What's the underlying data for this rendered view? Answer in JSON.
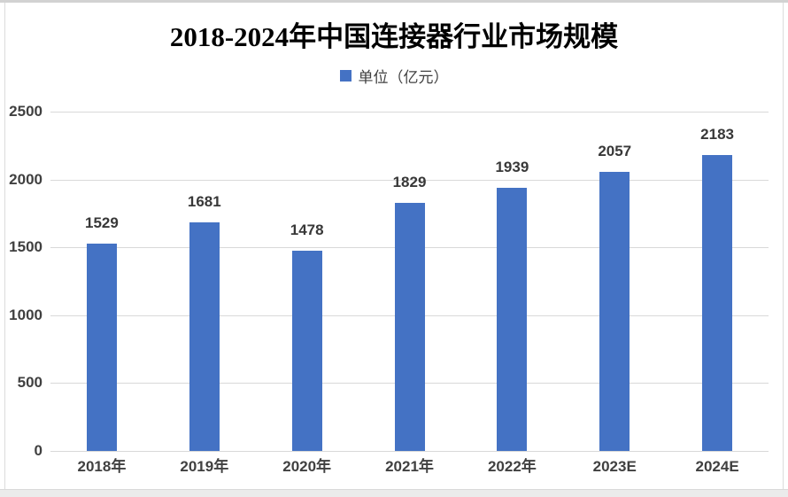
{
  "chart_data": {
    "type": "bar",
    "title": "2018-2024年中国连接器行业市场规模",
    "legend_label": "单位（亿元）",
    "legend_position": "top",
    "categories": [
      "2018年",
      "2019年",
      "2020年",
      "2021年",
      "2022年",
      "2023E",
      "2024E"
    ],
    "values": [
      1529,
      1681,
      1478,
      1829,
      1939,
      2057,
      2183
    ],
    "xlabel": "",
    "ylabel": "",
    "ylim": [
      0,
      2500
    ],
    "yticks": [
      0,
      500,
      1000,
      1500,
      2000,
      2500
    ],
    "grid": true,
    "bar_color": "#4472C4",
    "gridline_color": "#d9d9d9",
    "axis_label_color": "#404040",
    "data_label_color": "#383838",
    "title_color": "#000000"
  }
}
